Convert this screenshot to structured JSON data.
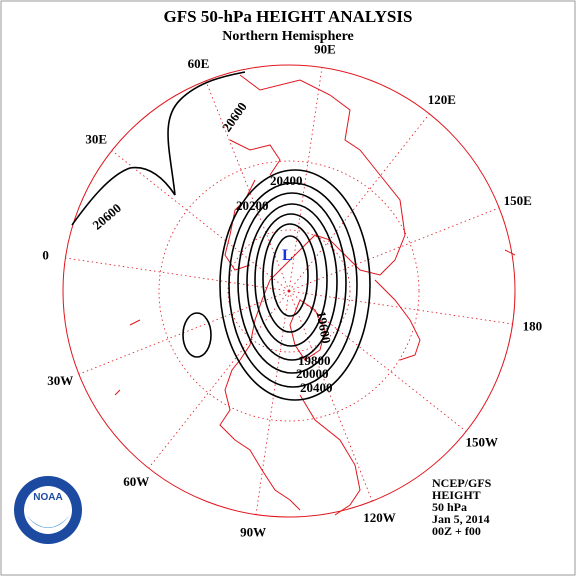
{
  "header": {
    "title": "GFS 50-hPa HEIGHT ANALYSIS",
    "subtitle": "Northern Hemisphere"
  },
  "longitude_labels": [
    "90E",
    "60E",
    "30E",
    "0",
    "30W",
    "60W",
    "90W",
    "120W",
    "150W",
    "180",
    "150E",
    "120E"
  ],
  "contour_labels": [
    "20400",
    "20200",
    "20600",
    "20600",
    "19800",
    "20000",
    "20400",
    "19600"
  ],
  "low_marker": "L",
  "logo_text": "NOAA",
  "info": [
    "NCEP/GFS",
    "HEIGHT",
    "50 hPa",
    "Jan 5, 2014",
    "00Z + f00"
  ]
}
